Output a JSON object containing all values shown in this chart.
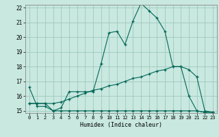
{
  "xlabel": "Humidex (Indice chaleur)",
  "bg_color": "#c8e8e0",
  "grid_color": "#a0c8bc",
  "line_color": "#006655",
  "x_values": [
    0,
    1,
    2,
    3,
    4,
    5,
    6,
    7,
    8,
    9,
    10,
    11,
    12,
    13,
    14,
    15,
    16,
    17,
    18,
    19,
    20,
    21,
    22,
    23
  ],
  "line1_y": [
    16.6,
    15.3,
    15.3,
    15.0,
    15.2,
    16.3,
    16.3,
    16.3,
    16.3,
    18.2,
    20.3,
    20.4,
    19.5,
    21.1,
    22.3,
    21.8,
    21.3,
    20.4,
    18.0,
    18.0,
    16.0,
    15.0,
    14.9,
    14.9
  ],
  "line2_y": [
    15.5,
    15.5,
    15.5,
    15.5,
    15.6,
    15.8,
    16.0,
    16.2,
    16.4,
    16.5,
    16.7,
    16.8,
    17.0,
    17.2,
    17.3,
    17.5,
    17.7,
    17.8,
    18.0,
    18.0,
    17.8,
    17.3,
    15.0,
    14.9
  ],
  "line3_y": [
    15.5,
    15.5,
    15.5,
    15.0,
    15.0,
    15.0,
    15.0,
    15.0,
    15.0,
    15.0,
    15.0,
    15.0,
    15.0,
    15.0,
    15.0,
    15.0,
    15.0,
    15.0,
    15.0,
    15.0,
    15.0,
    15.0,
    14.9,
    14.9
  ],
  "ylim": [
    15,
    22
  ],
  "xlim": [
    0,
    23
  ],
  "yticks": [
    15,
    16,
    17,
    18,
    19,
    20,
    21,
    22
  ],
  "xticks": [
    0,
    1,
    2,
    3,
    4,
    5,
    6,
    7,
    8,
    9,
    10,
    11,
    12,
    13,
    14,
    15,
    16,
    17,
    18,
    19,
    20,
    21,
    22,
    23
  ]
}
